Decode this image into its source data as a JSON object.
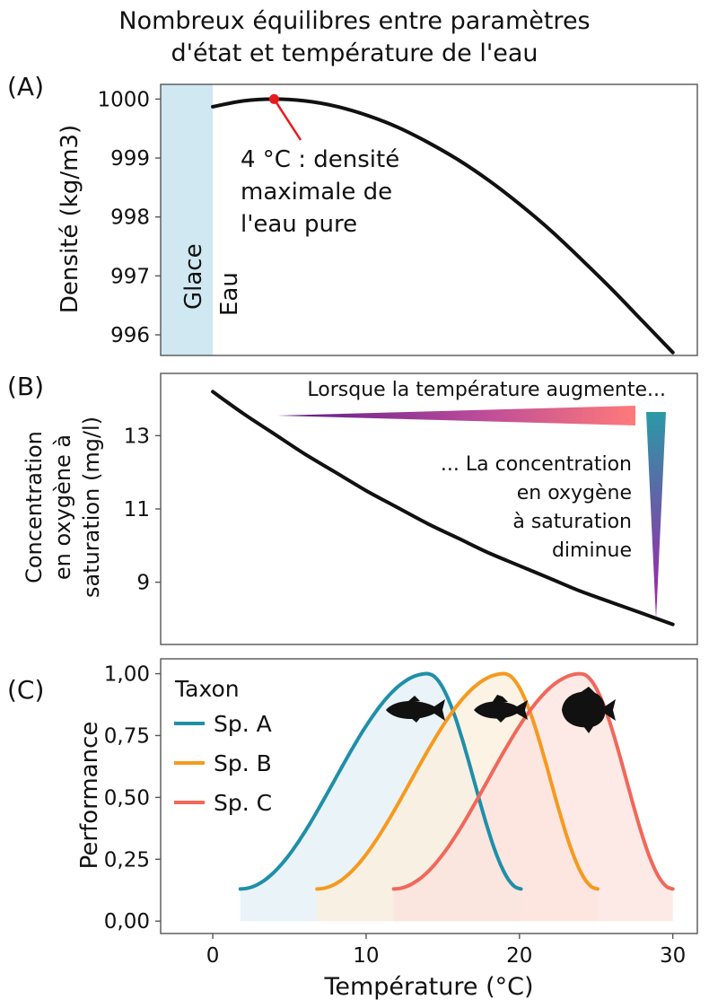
{
  "title_line1": "Nombreux équilibres entre paramètres",
  "title_line2": "d'état et température de l'eau",
  "chart_data": [
    {
      "panel_label": "(A)",
      "type": "line",
      "ylabel": "Densité (kg/m3)",
      "yticks": [
        996,
        997,
        998,
        999,
        1000
      ],
      "ylim": [
        995.65,
        1000.25
      ],
      "xlim": [
        -3.4,
        31.6
      ],
      "grid": false,
      "series": [
        {
          "x": [
            0,
            2,
            4,
            6,
            8,
            10,
            12,
            14,
            16,
            18,
            20,
            22,
            24,
            26,
            28,
            30
          ],
          "y": [
            999.87,
            999.97,
            1000.0,
            999.97,
            999.88,
            999.73,
            999.53,
            999.27,
            998.97,
            998.62,
            998.22,
            997.78,
            997.29,
            996.78,
            996.24,
            995.7
          ],
          "color": "#111111"
        }
      ],
      "shaded_region": {
        "x": [
          -3.4,
          0
        ],
        "label": "Glace",
        "color": "#cfe8f2"
      },
      "region_label": "Eau",
      "highlight_point": {
        "x": 4,
        "y": 1000,
        "color": "#e8191c"
      },
      "annotation_lines": [
        "4 °C : densité",
        "maximale de",
        "l'eau pure"
      ]
    },
    {
      "panel_label": "(B)",
      "type": "line",
      "ylabel_lines": [
        "Concentration",
        "en oxygène à",
        "saturation (mg/l)"
      ],
      "yticks": [
        9,
        11,
        13
      ],
      "ylim": [
        7.3,
        14.7
      ],
      "xlim": [
        -3.4,
        31.6
      ],
      "grid": false,
      "series": [
        {
          "x": [
            0,
            2,
            4,
            6,
            8,
            10,
            12,
            14,
            16,
            18,
            20,
            22,
            24,
            26,
            28,
            30
          ],
          "y": [
            14.2,
            13.6,
            13.05,
            12.5,
            12.0,
            11.5,
            11.05,
            10.6,
            10.2,
            9.8,
            9.45,
            9.1,
            8.75,
            8.45,
            8.15,
            7.85
          ],
          "color": "#111111"
        }
      ],
      "arrow_text_top": "Lorsque la température augmente...",
      "arrow_text_right": [
        "... La concentration",
        "en oxygène",
        "à saturation",
        "diminue"
      ],
      "colors": {
        "purple": "#5b1a8a",
        "pink": "#ff7a7a",
        "teal": "#2a9aa6",
        "magenta": "#a21caf"
      }
    },
    {
      "panel_label": "(C)",
      "type": "area",
      "xlabel": "Température (°C)",
      "ylabel": "Performance",
      "xticks": [
        0,
        10,
        20,
        30
      ],
      "yticks": [
        "0,00",
        "0,25",
        "0,50",
        "0,75",
        "1,00"
      ],
      "ytick_values": [
        0,
        0.25,
        0.5,
        0.75,
        1.0
      ],
      "ylim": [
        -0.05,
        1.06
      ],
      "xlim": [
        -3.4,
        31.6
      ],
      "grid": false,
      "legend_title": "Taxon",
      "legend_position": "top-left",
      "series": [
        {
          "name": "Sp. A",
          "color": "#1f8fa8",
          "fill": "#e1eff6",
          "x_start": 1.8,
          "x_peak": 14,
          "x_end": 20.1,
          "start_value": 0.13,
          "peak_value": 1.0,
          "end_value": 0.13
        },
        {
          "name": "Sp. B",
          "color": "#f59a1f",
          "fill": "#fcefdc",
          "x_start": 6.8,
          "x_peak": 19,
          "x_end": 25.1,
          "start_value": 0.13,
          "peak_value": 1.0,
          "end_value": 0.13
        },
        {
          "name": "Sp. C",
          "color": "#f0685a",
          "fill": "#fce2dd",
          "x_start": 11.8,
          "x_peak": 24,
          "x_end": 30.0,
          "start_value": 0.13,
          "peak_value": 1.0,
          "end_value": 0.13
        }
      ]
    }
  ]
}
